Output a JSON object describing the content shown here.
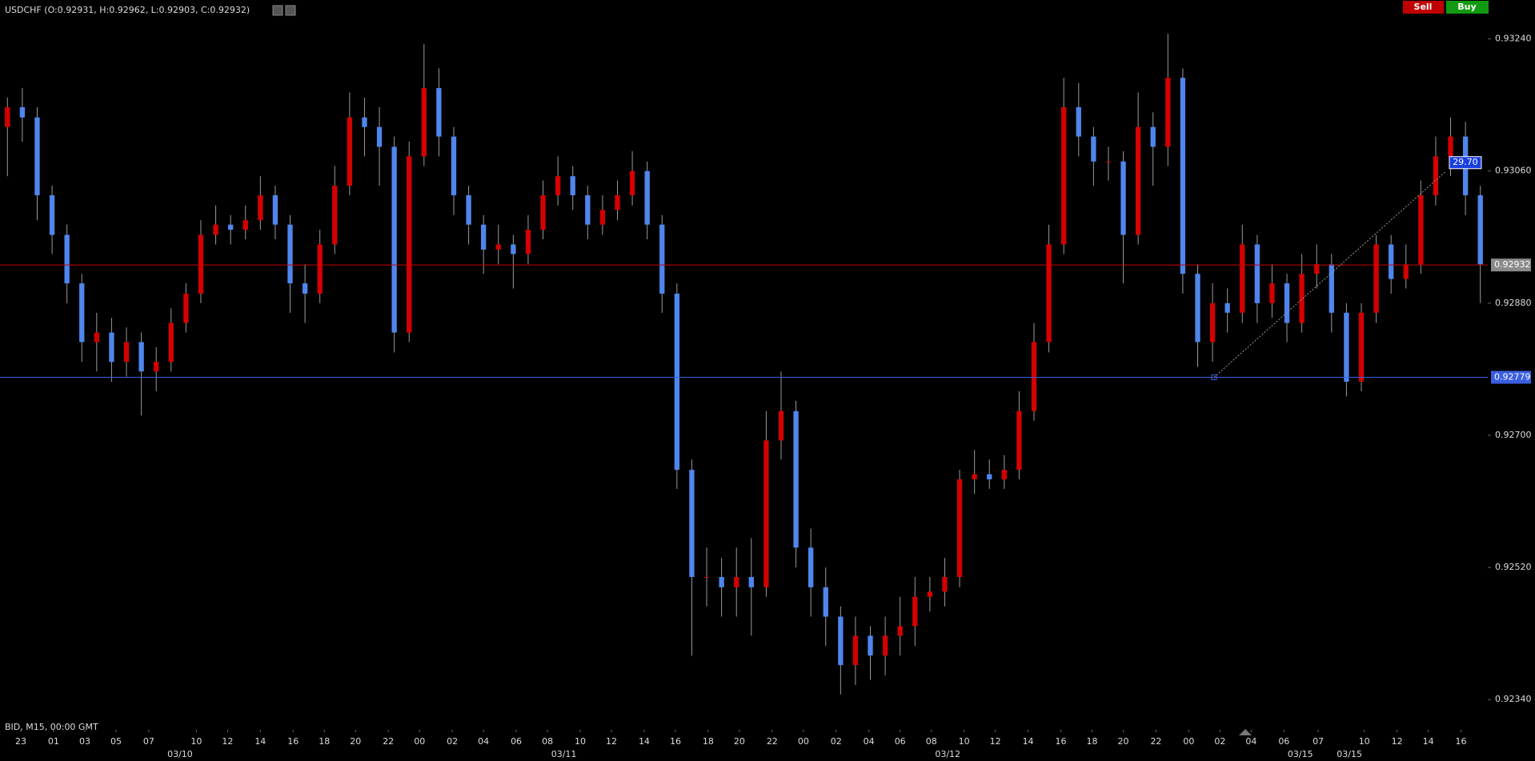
{
  "toolbar": {
    "sell": "Sell",
    "buy": "Buy"
  },
  "chart_data": {
    "type": "candlestick",
    "title": "USDCHF (O:0.92931, H:0.92962, L:0.92903, C:0.92932)",
    "footer": "BID, M15, 00:00 GMT",
    "up_color": "#d40000",
    "down_color": "#4f86ee",
    "wick_color": "#9a9a9a",
    "open": [
      0.9312,
      0.93147,
      0.93133,
      0.93027,
      0.92973,
      0.92907,
      0.92827,
      0.9284,
      0.928,
      0.92827,
      0.92787,
      0.928,
      0.92853,
      0.92893,
      0.92973,
      0.92987,
      0.9298,
      0.92993,
      0.93027,
      0.92987,
      0.92907,
      0.92893,
      0.9296,
      0.9304,
      0.93133,
      0.9312,
      0.93093,
      0.9284,
      0.9308,
      0.93173,
      0.93107,
      0.93027,
      0.92987,
      0.92953,
      0.9296,
      0.92947,
      0.9298,
      0.93027,
      0.93053,
      0.93027,
      0.92987,
      0.93007,
      0.93027,
      0.9306,
      0.92987,
      0.92893,
      0.92653,
      0.92507,
      0.92507,
      0.92493,
      0.92507,
      0.92493,
      0.92693,
      0.92733,
      0.92547,
      0.92493,
      0.92453,
      0.92387,
      0.92427,
      0.924,
      0.92427,
      0.9244,
      0.9248,
      0.92487,
      0.92507,
      0.9264,
      0.92647,
      0.9264,
      0.92653,
      0.92733,
      0.92827,
      0.9296,
      0.93147,
      0.93107,
      0.93073,
      0.93073,
      0.92973,
      0.9312,
      0.93093,
      0.93187,
      0.9292,
      0.92827,
      0.9288,
      0.92867,
      0.9296,
      0.9288,
      0.92907,
      0.92853,
      0.9292,
      0.92933,
      0.92867,
      0.92773,
      0.92867,
      0.9296,
      0.92913,
      0.92933,
      0.93027,
      0.9308,
      0.93107,
      0.93027
    ],
    "high": [
      0.9316,
      0.93173,
      0.93147,
      0.9304,
      0.92987,
      0.9292,
      0.92867,
      0.9286,
      0.92847,
      0.9284,
      0.9282,
      0.92873,
      0.92907,
      0.92993,
      0.93013,
      0.93,
      0.93013,
      0.93053,
      0.9304,
      0.93,
      0.92933,
      0.9298,
      0.93067,
      0.93167,
      0.9316,
      0.93147,
      0.93107,
      0.931,
      0.93233,
      0.932,
      0.9312,
      0.9304,
      0.93,
      0.92987,
      0.92973,
      0.93,
      0.93047,
      0.9308,
      0.93067,
      0.9304,
      0.93027,
      0.93047,
      0.93087,
      0.93073,
      0.93,
      0.92907,
      0.92667,
      0.92547,
      0.92533,
      0.92547,
      0.9256,
      0.92733,
      0.92787,
      0.92747,
      0.92573,
      0.9252,
      0.92467,
      0.92453,
      0.9244,
      0.92453,
      0.9248,
      0.92507,
      0.92507,
      0.92533,
      0.92653,
      0.9268,
      0.92667,
      0.92673,
      0.9276,
      0.92853,
      0.92987,
      0.93187,
      0.9318,
      0.9312,
      0.93093,
      0.93087,
      0.93167,
      0.9314,
      0.93247,
      0.932,
      0.92933,
      0.92907,
      0.929,
      0.92987,
      0.92973,
      0.92933,
      0.9292,
      0.92947,
      0.9296,
      0.92947,
      0.9288,
      0.9288,
      0.92973,
      0.92973,
      0.9296,
      0.93047,
      0.93107,
      0.93133,
      0.93127,
      0.9304
    ],
    "low": [
      0.93053,
      0.931,
      0.92993,
      0.92947,
      0.9288,
      0.928,
      0.92787,
      0.92773,
      0.9278,
      0.92727,
      0.9276,
      0.92787,
      0.9284,
      0.9288,
      0.9296,
      0.9296,
      0.92967,
      0.9298,
      0.92967,
      0.92867,
      0.92853,
      0.9288,
      0.92947,
      0.93027,
      0.9308,
      0.9304,
      0.92813,
      0.92827,
      0.93067,
      0.9308,
      0.93,
      0.9296,
      0.9292,
      0.92933,
      0.929,
      0.92933,
      0.92967,
      0.93013,
      0.93007,
      0.92967,
      0.92973,
      0.92993,
      0.93013,
      0.92967,
      0.92867,
      0.92627,
      0.924,
      0.92467,
      0.92453,
      0.92453,
      0.92427,
      0.9248,
      0.92667,
      0.9252,
      0.92453,
      0.92413,
      0.92347,
      0.9236,
      0.92367,
      0.92373,
      0.924,
      0.92413,
      0.9246,
      0.92467,
      0.92493,
      0.9262,
      0.92627,
      0.92627,
      0.9264,
      0.9272,
      0.92813,
      0.92947,
      0.9308,
      0.9304,
      0.93047,
      0.92907,
      0.9296,
      0.9304,
      0.93067,
      0.92893,
      0.92793,
      0.928,
      0.9284,
      0.92853,
      0.92853,
      0.9286,
      0.92827,
      0.9284,
      0.929,
      0.9284,
      0.92753,
      0.9276,
      0.92853,
      0.92893,
      0.929,
      0.9292,
      0.93013,
      0.93053,
      0.93,
      0.9288
    ],
    "close": [
      0.93147,
      0.93133,
      0.93027,
      0.92973,
      0.92907,
      0.92827,
      0.9284,
      0.928,
      0.92827,
      0.92787,
      0.928,
      0.92853,
      0.92893,
      0.92973,
      0.92987,
      0.9298,
      0.92993,
      0.93027,
      0.92987,
      0.92907,
      0.92893,
      0.9296,
      0.9304,
      0.93133,
      0.9312,
      0.93093,
      0.9284,
      0.9308,
      0.93173,
      0.93107,
      0.93027,
      0.92987,
      0.92953,
      0.9296,
      0.92947,
      0.9298,
      0.93027,
      0.93053,
      0.93027,
      0.92987,
      0.93007,
      0.93027,
      0.9306,
      0.92987,
      0.92893,
      0.92653,
      0.92507,
      0.92507,
      0.92493,
      0.92507,
      0.92493,
      0.92693,
      0.92733,
      0.92547,
      0.92493,
      0.92453,
      0.92387,
      0.92427,
      0.924,
      0.92427,
      0.9244,
      0.9248,
      0.92487,
      0.92507,
      0.9264,
      0.92647,
      0.9264,
      0.92653,
      0.92733,
      0.92827,
      0.9296,
      0.93147,
      0.93107,
      0.93073,
      0.93073,
      0.92973,
      0.9312,
      0.93093,
      0.93187,
      0.9292,
      0.92827,
      0.9288,
      0.92867,
      0.9296,
      0.9288,
      0.92907,
      0.92853,
      0.9292,
      0.92933,
      0.92867,
      0.92773,
      0.92867,
      0.9296,
      0.92913,
      0.92933,
      0.93027,
      0.9308,
      0.93107,
      0.93027,
      0.92933
    ],
    "xlim": [
      0,
      100
    ],
    "ylim": [
      0.92313,
      0.93293
    ],
    "yticks": [
      {
        "value": 0.9324,
        "label": "0.93240"
      },
      {
        "value": 0.9306,
        "label": "0.93060"
      },
      {
        "value": 0.9288,
        "label": "0.92880"
      },
      {
        "value": 0.927,
        "label": "0.92700"
      },
      {
        "value": 0.9252,
        "label": "0.92520"
      },
      {
        "value": 0.9234,
        "label": "0.92340"
      }
    ],
    "xticks": [
      {
        "value": 1.4,
        "label": "23"
      },
      {
        "value": 3.6,
        "label": "01"
      },
      {
        "value": 5.7,
        "label": "03"
      },
      {
        "value": 7.8,
        "label": "05"
      },
      {
        "value": 10,
        "label": "07"
      },
      {
        "value": 13.2,
        "label": "10"
      },
      {
        "value": 15.3,
        "label": "12"
      },
      {
        "value": 17.5,
        "label": "14"
      },
      {
        "value": 19.7,
        "label": "16"
      },
      {
        "value": 21.8,
        "label": "18"
      },
      {
        "value": 23.9,
        "label": "20"
      },
      {
        "value": 26.1,
        "label": "22"
      },
      {
        "value": 28.2,
        "label": "00"
      },
      {
        "value": 30.4,
        "label": "02"
      },
      {
        "value": 32.5,
        "label": "04"
      },
      {
        "value": 34.7,
        "label": "06"
      },
      {
        "value": 36.8,
        "label": "08"
      },
      {
        "value": 39,
        "label": "10"
      },
      {
        "value": 41.1,
        "label": "12"
      },
      {
        "value": 43.3,
        "label": "14"
      },
      {
        "value": 45.4,
        "label": "16"
      },
      {
        "value": 47.6,
        "label": "18"
      },
      {
        "value": 49.7,
        "label": "20"
      },
      {
        "value": 51.9,
        "label": "22"
      },
      {
        "value": 54,
        "label": "00"
      },
      {
        "value": 56.2,
        "label": "02"
      },
      {
        "value": 58.4,
        "label": "04"
      },
      {
        "value": 60.5,
        "label": "06"
      },
      {
        "value": 62.6,
        "label": "08"
      },
      {
        "value": 64.8,
        "label": "10"
      },
      {
        "value": 66.9,
        "label": "12"
      },
      {
        "value": 69.1,
        "label": "14"
      },
      {
        "value": 71.3,
        "label": "16"
      },
      {
        "value": 73.4,
        "label": "18"
      },
      {
        "value": 75.5,
        "label": "20"
      },
      {
        "value": 77.7,
        "label": "22"
      },
      {
        "value": 79.9,
        "label": "00"
      },
      {
        "value": 82,
        "label": "02"
      },
      {
        "value": 84.1,
        "label": "04"
      },
      {
        "value": 86.3,
        "label": "06"
      },
      {
        "value": 88.6,
        "label": "07"
      },
      {
        "value": 91.7,
        "label": "10"
      },
      {
        "value": 93.9,
        "label": "12"
      },
      {
        "value": 96,
        "label": "14"
      },
      {
        "value": 98.2,
        "label": "16"
      }
    ],
    "date_ticks": [
      {
        "value": 12.1,
        "label": "03/10"
      },
      {
        "value": 37.9,
        "label": "03/11"
      },
      {
        "value": 63.7,
        "label": "03/12"
      },
      {
        "value": 87.4,
        "label": "03/15"
      },
      {
        "value": 90.7,
        "label": "03/15"
      }
    ],
    "hlines": [
      {
        "value": 0.92932,
        "color": "#c80000",
        "label_bg": "#8a8a8a"
      },
      {
        "value": 0.92779,
        "color": "#3a5ee0",
        "label_bg": "#3a5ee0"
      }
    ],
    "trendline": {
      "x": [
        81.6,
        97.2
      ],
      "y": [
        0.92779,
        0.9306
      ],
      "label": "29.70",
      "color": "#9a9a9a",
      "label_bg": "#1a3fe0"
    }
  }
}
